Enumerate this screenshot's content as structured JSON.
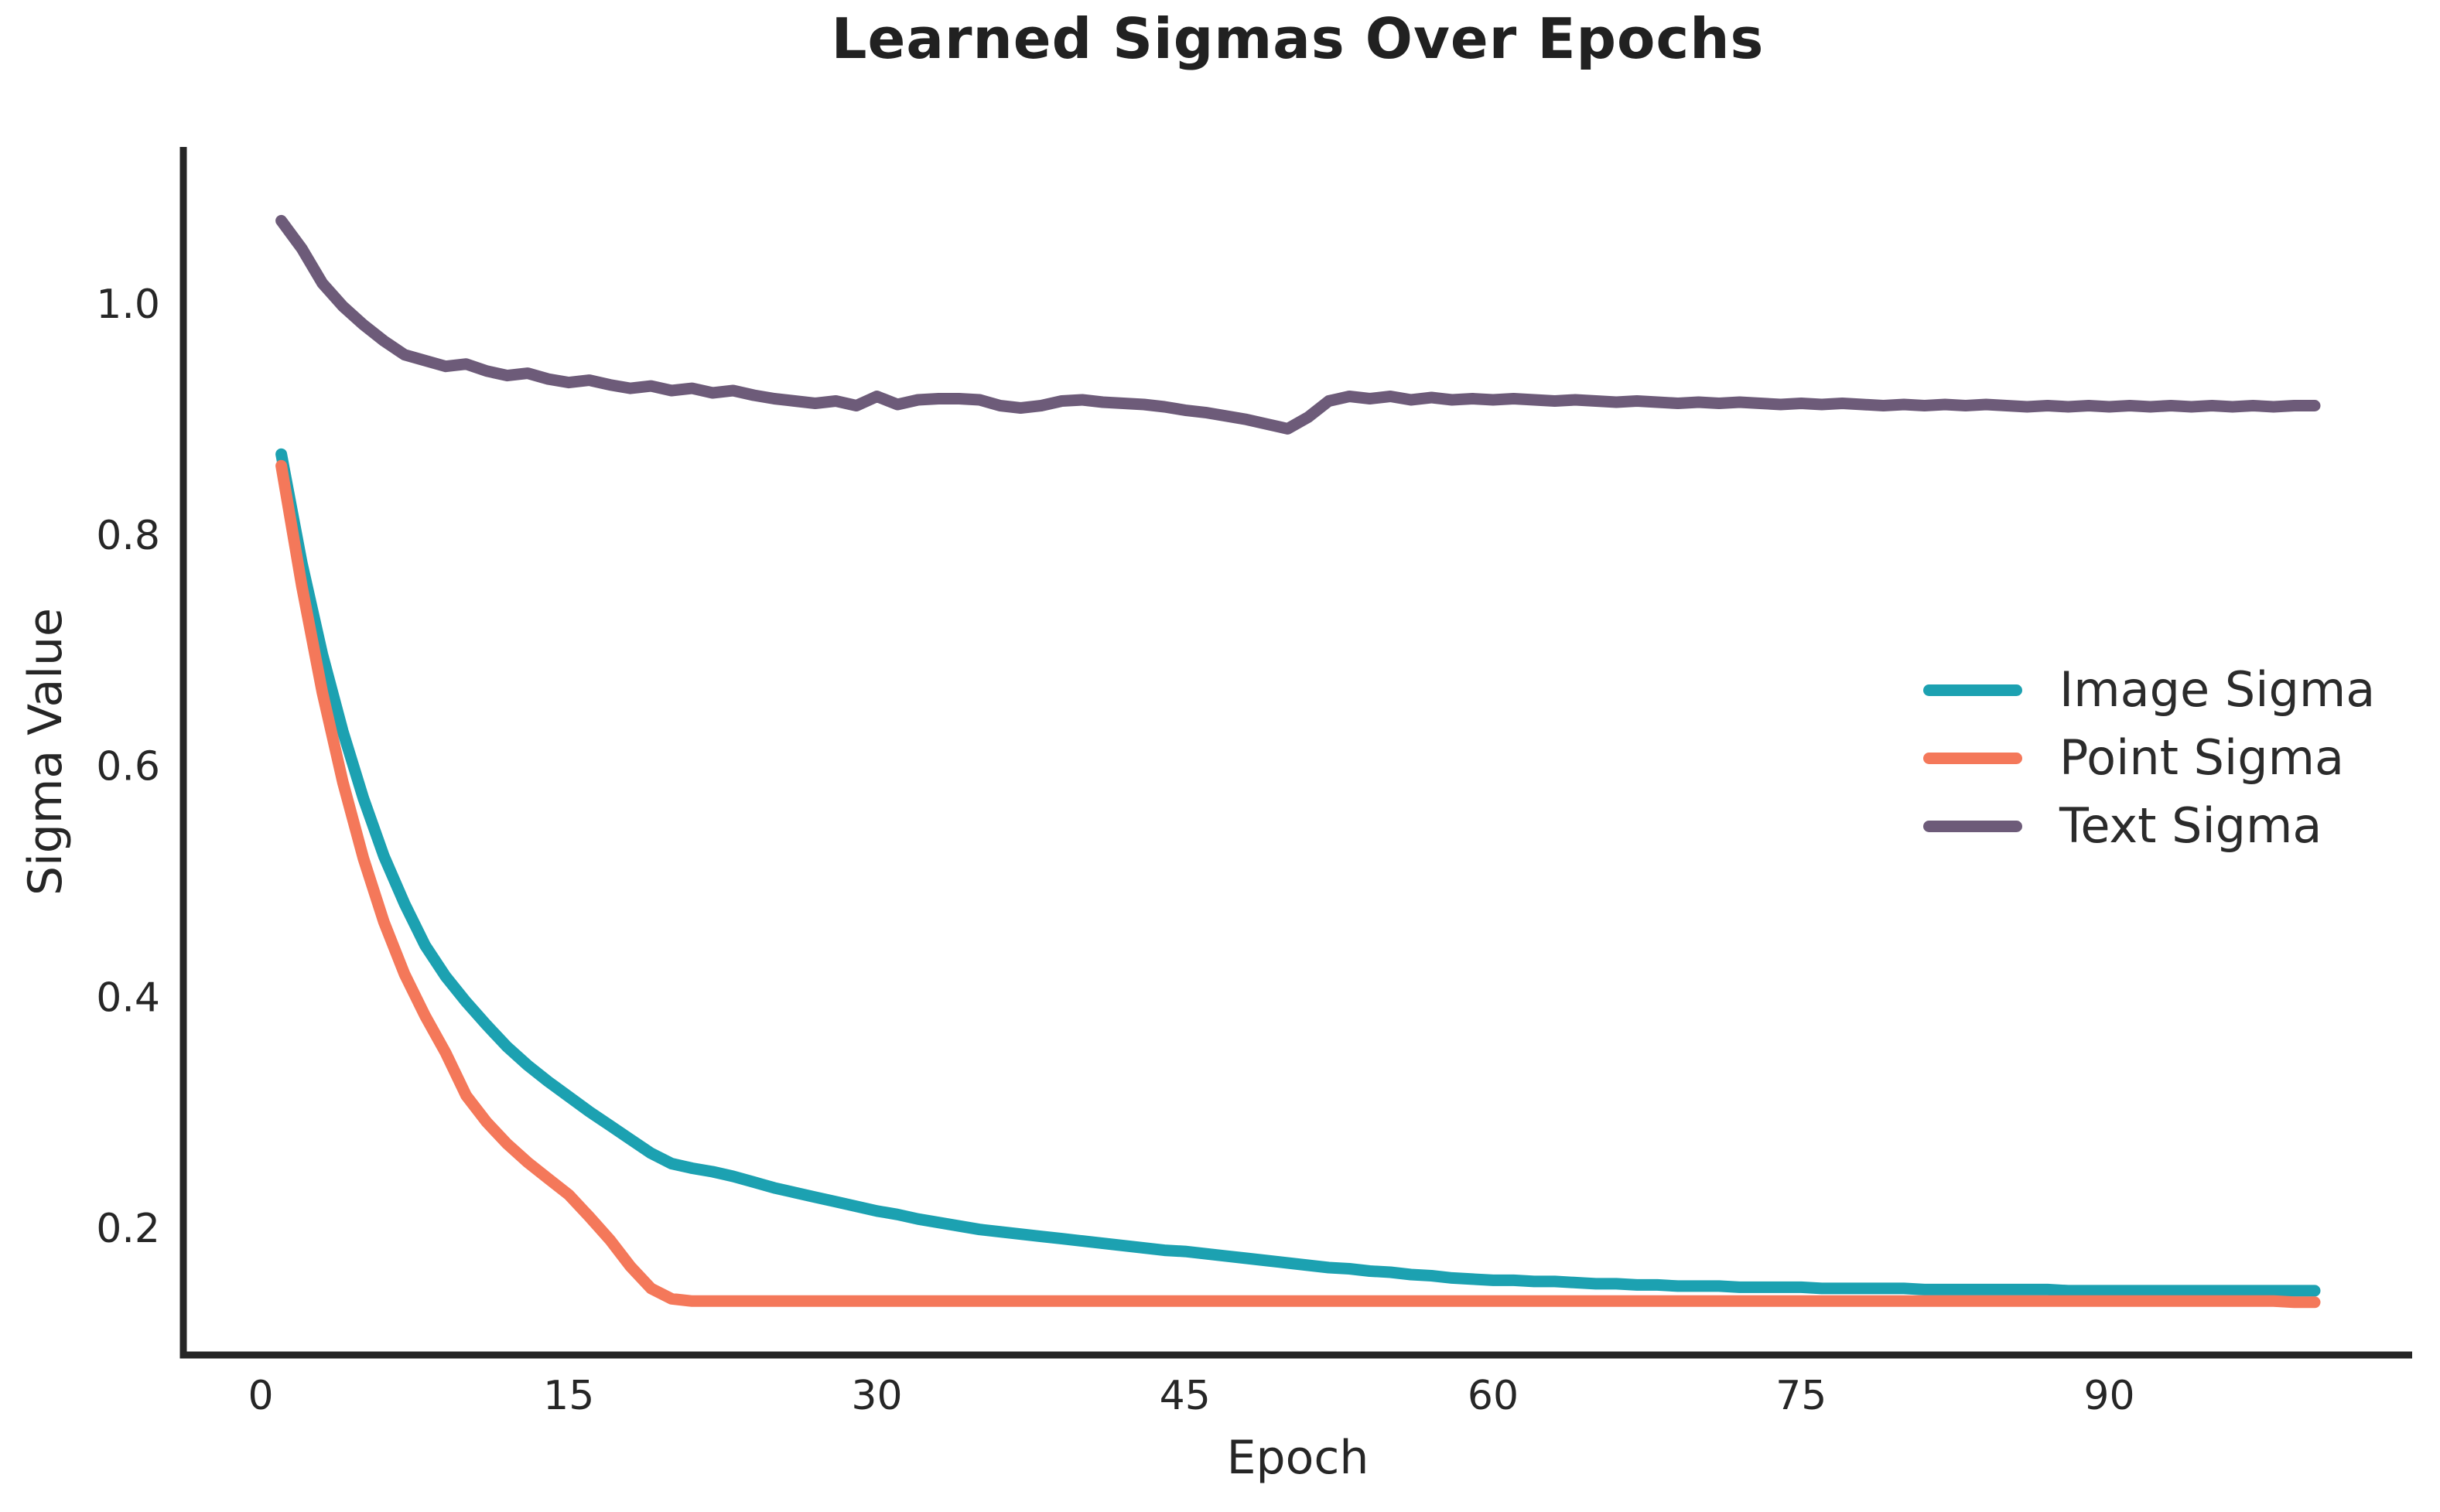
{
  "title": "Learned Sigmas Over Epochs",
  "axes": {
    "xlabel": "Epoch",
    "ylabel": "Sigma Value",
    "axis_color": "#262626",
    "tick_label_color": "#262626"
  },
  "chart_data": {
    "type": "line",
    "title": "Learned Sigmas Over Epochs",
    "xlabel": "Epoch",
    "ylabel": "Sigma Value",
    "grid": false,
    "legend_position": "center right",
    "x_start_epoch": 1,
    "xlim": [
      -3.8,
      104.7
    ],
    "ylim": [
      0.09,
      1.136
    ],
    "x_ticks": [
      0,
      15,
      30,
      45,
      60,
      75,
      90
    ],
    "y_ticks": [
      {
        "v": 0.2,
        "label": "0.2"
      },
      {
        "v": 0.4,
        "label": "0.4"
      },
      {
        "v": 0.6,
        "label": "0.6"
      },
      {
        "v": 0.8,
        "label": "0.8"
      },
      {
        "v": 1.0,
        "label": "1.0"
      }
    ],
    "series": [
      {
        "name": "Image Sigma",
        "color": "#1ca1b1",
        "values": [
          0.87,
          0.776,
          0.697,
          0.63,
          0.572,
          0.522,
          0.481,
          0.445,
          0.418,
          0.396,
          0.376,
          0.357,
          0.341,
          0.327,
          0.314,
          0.301,
          0.289,
          0.277,
          0.265,
          0.256,
          0.252,
          0.249,
          0.245,
          0.24,
          0.235,
          0.231,
          0.227,
          0.223,
          0.219,
          0.215,
          0.212,
          0.208,
          0.205,
          0.202,
          0.199,
          0.197,
          0.195,
          0.193,
          0.191,
          0.189,
          0.187,
          0.185,
          0.183,
          0.181,
          0.18,
          0.178,
          0.176,
          0.174,
          0.172,
          0.17,
          0.168,
          0.166,
          0.165,
          0.163,
          0.162,
          0.16,
          0.159,
          0.157,
          0.156,
          0.155,
          0.155,
          0.154,
          0.154,
          0.153,
          0.152,
          0.152,
          0.151,
          0.151,
          0.15,
          0.15,
          0.15,
          0.149,
          0.149,
          0.149,
          0.149,
          0.148,
          0.148,
          0.148,
          0.148,
          0.148,
          0.147,
          0.147,
          0.147,
          0.147,
          0.147,
          0.147,
          0.147,
          0.146,
          0.146,
          0.146,
          0.146,
          0.146,
          0.146,
          0.146,
          0.146,
          0.146,
          0.146,
          0.146,
          0.146,
          0.146
        ]
      },
      {
        "name": "Point Sigma",
        "color": "#f4785a",
        "values": [
          0.86,
          0.756,
          0.664,
          0.586,
          0.52,
          0.465,
          0.42,
          0.384,
          0.352,
          0.315,
          0.292,
          0.273,
          0.257,
          0.243,
          0.229,
          0.21,
          0.19,
          0.167,
          0.148,
          0.139,
          0.137,
          0.137,
          0.137,
          0.137,
          0.137,
          0.137,
          0.137,
          0.137,
          0.137,
          0.137,
          0.137,
          0.137,
          0.137,
          0.137,
          0.137,
          0.137,
          0.137,
          0.137,
          0.137,
          0.137,
          0.137,
          0.137,
          0.137,
          0.137,
          0.137,
          0.137,
          0.137,
          0.137,
          0.137,
          0.137,
          0.137,
          0.137,
          0.137,
          0.137,
          0.137,
          0.137,
          0.137,
          0.137,
          0.137,
          0.137,
          0.137,
          0.137,
          0.137,
          0.137,
          0.137,
          0.137,
          0.137,
          0.137,
          0.137,
          0.137,
          0.137,
          0.137,
          0.137,
          0.137,
          0.137,
          0.137,
          0.137,
          0.137,
          0.137,
          0.137,
          0.137,
          0.137,
          0.137,
          0.137,
          0.137,
          0.137,
          0.137,
          0.137,
          0.137,
          0.137,
          0.137,
          0.137,
          0.137,
          0.137,
          0.137,
          0.137,
          0.137,
          0.137,
          0.136,
          0.136
        ]
      },
      {
        "name": "Text Sigma",
        "color": "#6d5b79",
        "values": [
          1.072,
          1.048,
          1.018,
          0.998,
          0.982,
          0.968,
          0.956,
          0.951,
          0.946,
          0.948,
          0.942,
          0.938,
          0.94,
          0.935,
          0.932,
          0.934,
          0.93,
          0.927,
          0.929,
          0.925,
          0.927,
          0.923,
          0.925,
          0.921,
          0.918,
          0.916,
          0.914,
          0.916,
          0.912,
          0.92,
          0.913,
          0.917,
          0.918,
          0.918,
          0.917,
          0.912,
          0.91,
          0.912,
          0.916,
          0.917,
          0.915,
          0.914,
          0.913,
          0.911,
          0.908,
          0.906,
          0.903,
          0.9,
          0.896,
          0.892,
          0.902,
          0.916,
          0.92,
          0.918,
          0.92,
          0.917,
          0.919,
          0.917,
          0.918,
          0.917,
          0.918,
          0.917,
          0.916,
          0.917,
          0.916,
          0.915,
          0.916,
          0.915,
          0.914,
          0.915,
          0.914,
          0.915,
          0.914,
          0.913,
          0.914,
          0.913,
          0.914,
          0.913,
          0.912,
          0.913,
          0.912,
          0.913,
          0.912,
          0.913,
          0.912,
          0.911,
          0.912,
          0.911,
          0.912,
          0.911,
          0.912,
          0.911,
          0.912,
          0.911,
          0.912,
          0.911,
          0.912,
          0.911,
          0.912,
          0.912
        ]
      }
    ]
  }
}
